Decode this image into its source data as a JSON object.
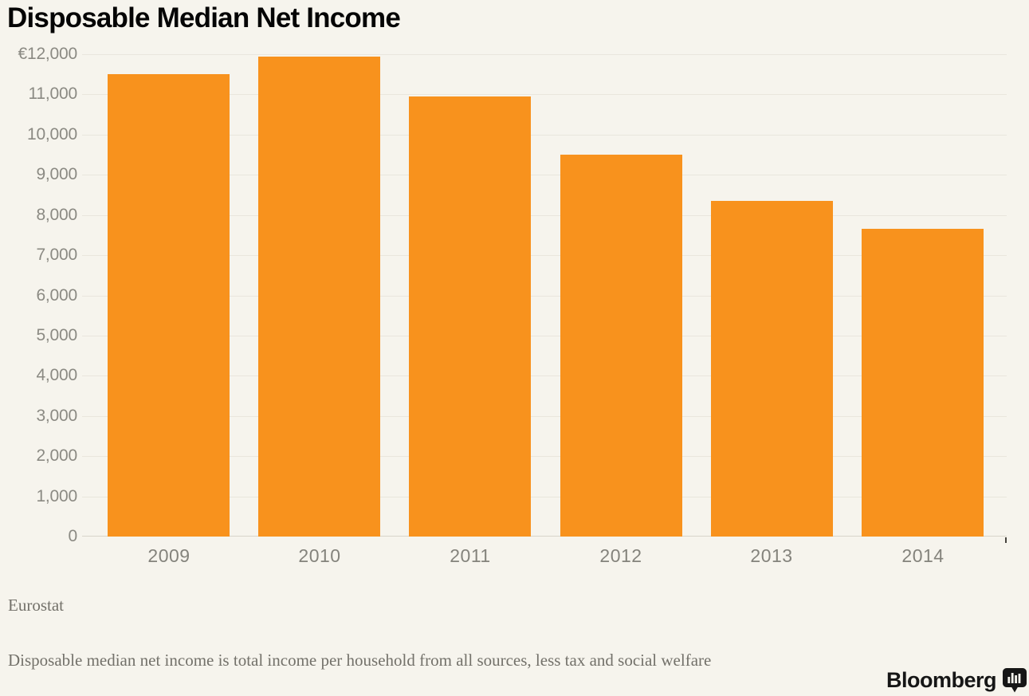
{
  "title": "Disposable Median Net Income",
  "source_label": "Eurostat",
  "footnote": "Disposable median net income is total income per household from all sources, less tax and social welfare",
  "brand": {
    "name": "Bloomberg",
    "icon": "bloomberg-chart-bubble-icon"
  },
  "colors": {
    "background": "#f6f4ed",
    "bar": "#f8921d",
    "gridline": "#e9e6dd",
    "baseline": "#d8d5ca",
    "axis_label": "#8b8a83",
    "x_label": "#84837c",
    "title_text": "#050505",
    "footer_text": "#73716a",
    "brand_text": "#161616"
  },
  "chart_data": {
    "type": "bar",
    "title": "Disposable Median Net Income",
    "categories": [
      "2009",
      "2010",
      "2011",
      "2012",
      "2013",
      "2014"
    ],
    "values": [
      11500,
      11950,
      10950,
      9500,
      8350,
      7650
    ],
    "unit": "EUR",
    "xlabel": "",
    "ylabel": "",
    "ylim": [
      0,
      12000
    ],
    "ytick_step": 1000,
    "ytick_labels": [
      "0",
      "1,000",
      "2,000",
      "3,000",
      "4,000",
      "5,000",
      "6,000",
      "7,000",
      "8,000",
      "9,000",
      "10,000",
      "11,000",
      "€12,000"
    ],
    "grid": true,
    "legend": false,
    "bar_color": "#f8921d",
    "source": "Eurostat"
  }
}
